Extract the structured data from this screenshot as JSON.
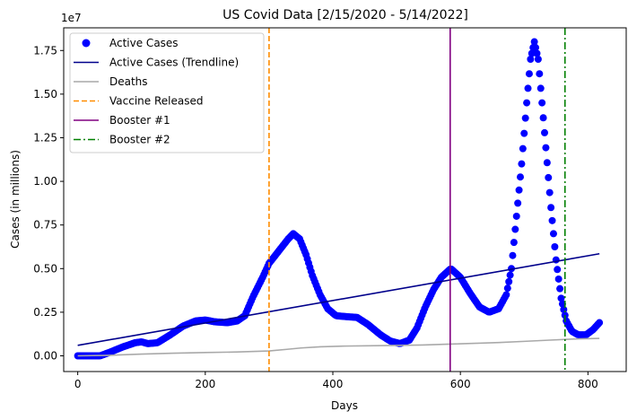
{
  "chart_data": {
    "type": "scatter",
    "title": "US Covid Data [2/15/2020 - 5/14/2022]",
    "xlabel": "Days",
    "ylabel": "Cases (in millions)",
    "y_offset_text": "1e7",
    "xlim": [
      -22,
      860
    ],
    "ylim": [
      -900000,
      18800000
    ],
    "x_ticks": [
      0,
      200,
      400,
      600,
      800
    ],
    "x_tick_labels": [
      "0",
      "200",
      "400",
      "600",
      "800"
    ],
    "y_ticks": [
      0,
      2500000,
      5000000,
      7500000,
      10000000,
      12500000,
      15000000,
      17500000
    ],
    "y_tick_labels": [
      "0.00",
      "0.25",
      "0.50",
      "0.75",
      "1.00",
      "1.25",
      "1.50",
      "1.75"
    ],
    "grid": false,
    "legend_position": "top-left",
    "colors": {
      "active": "#0000ff",
      "trend": "#00008b",
      "deaths": "#a9a9a9",
      "vaccine": "#ff8c00",
      "booster1": "#800080",
      "booster2": "#008000"
    },
    "active_cases": {
      "name": "Active Cases",
      "x_range": [
        0,
        818
      ],
      "shape": [
        [
          0,
          0
        ],
        [
          35,
          0
        ],
        [
          50,
          200000
        ],
        [
          70,
          500000
        ],
        [
          90,
          750000
        ],
        [
          100,
          800000
        ],
        [
          110,
          700000
        ],
        [
          125,
          750000
        ],
        [
          145,
          1200000
        ],
        [
          165,
          1700000
        ],
        [
          185,
          2000000
        ],
        [
          200,
          2050000
        ],
        [
          215,
          1950000
        ],
        [
          235,
          1900000
        ],
        [
          250,
          2000000
        ],
        [
          262,
          2300000
        ],
        [
          275,
          3400000
        ],
        [
          290,
          4500000
        ],
        [
          300,
          5300000
        ],
        [
          315,
          6000000
        ],
        [
          330,
          6700000
        ],
        [
          338,
          7000000
        ],
        [
          348,
          6700000
        ],
        [
          358,
          5800000
        ],
        [
          368,
          4600000
        ],
        [
          380,
          3500000
        ],
        [
          392,
          2700000
        ],
        [
          405,
          2300000
        ],
        [
          420,
          2250000
        ],
        [
          438,
          2200000
        ],
        [
          455,
          1800000
        ],
        [
          475,
          1200000
        ],
        [
          490,
          850000
        ],
        [
          505,
          700000
        ],
        [
          520,
          900000
        ],
        [
          532,
          1600000
        ],
        [
          545,
          2800000
        ],
        [
          558,
          3800000
        ],
        [
          570,
          4500000
        ],
        [
          585,
          5000000
        ],
        [
          600,
          4500000
        ],
        [
          615,
          3600000
        ],
        [
          630,
          2800000
        ],
        [
          645,
          2500000
        ],
        [
          660,
          2700000
        ],
        [
          672,
          3500000
        ],
        [
          680,
          5000000
        ],
        [
          688,
          8000000
        ],
        [
          696,
          11000000
        ],
        [
          704,
          14500000
        ],
        [
          710,
          17000000
        ],
        [
          716,
          18000000
        ],
        [
          722,
          17000000
        ],
        [
          728,
          14500000
        ],
        [
          735,
          11500000
        ],
        [
          742,
          8500000
        ],
        [
          750,
          5500000
        ],
        [
          758,
          3300000
        ],
        [
          766,
          2000000
        ],
        [
          775,
          1400000
        ],
        [
          785,
          1200000
        ],
        [
          797,
          1200000
        ],
        [
          808,
          1500000
        ],
        [
          818,
          1900000
        ]
      ]
    },
    "trendline": {
      "name": "Active Cases (Trendline)",
      "x": [
        0,
        818
      ],
      "y": [
        600000,
        5850000
      ]
    },
    "deaths": {
      "name": "Deaths",
      "x": [
        0,
        50,
        100,
        150,
        200,
        250,
        300,
        330,
        350,
        380,
        420,
        480,
        540,
        600,
        660,
        700,
        740,
        780,
        818
      ],
      "y": [
        0,
        30000,
        100000,
        150000,
        190000,
        220000,
        280000,
        380000,
        450000,
        520000,
        560000,
        590000,
        620000,
        690000,
        760000,
        830000,
        900000,
        970000,
        1000000
      ]
    },
    "vlines": [
      {
        "name": "Vaccine Released",
        "x": 300,
        "style": "dashed",
        "color": "#ff8c00"
      },
      {
        "name": "Booster #1",
        "x": 584,
        "style": "solid",
        "color": "#800080"
      },
      {
        "name": "Booster #2",
        "x": 764,
        "style": "dashdot",
        "color": "#008000"
      }
    ],
    "legend": [
      "Active Cases",
      "Active Cases (Trendline)",
      "Deaths",
      "Vaccine Released",
      "Booster #1",
      "Booster #2"
    ]
  }
}
